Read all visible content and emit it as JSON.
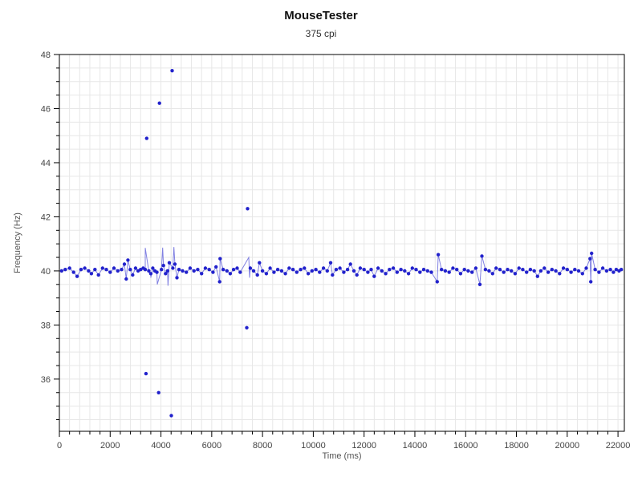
{
  "page": {
    "title": "MouseTester",
    "subtitle": "375 cpi"
  },
  "chart_data": {
    "type": "scatter",
    "title": "MouseTester",
    "subtitle": "375 cpi",
    "xlabel": "Time (ms)",
    "ylabel": "Frequency (Hz)",
    "xlim": [
      0,
      22250
    ],
    "ylim": [
      34.07,
      48
    ],
    "x_major_step": 2000,
    "x_minor_step": 400,
    "y_major_step": 2,
    "y_minor_step": 0.5,
    "grid": true,
    "legend_position": "none",
    "colors": {
      "marker": "#2222CC",
      "line": "#6B6BDD",
      "grid": "#E7E7E7",
      "axis": "#000000",
      "tick_label": "#444444",
      "axis_title": "#555555"
    },
    "series": [
      {
        "name": "Frequency",
        "points": [
          [
            90,
            40.0
          ],
          [
            230,
            40.05
          ],
          [
            400,
            40.1
          ],
          [
            560,
            39.95
          ],
          [
            700,
            39.8
          ],
          [
            850,
            40.05
          ],
          [
            1000,
            40.1
          ],
          [
            1150,
            40.0
          ],
          [
            1260,
            39.9
          ],
          [
            1400,
            40.05
          ],
          [
            1540,
            39.85
          ],
          [
            1700,
            40.1
          ],
          [
            1850,
            40.05
          ],
          [
            2000,
            39.95
          ],
          [
            2150,
            40.1
          ],
          [
            2300,
            40.0
          ],
          [
            2450,
            40.05
          ],
          [
            2560,
            40.25
          ],
          [
            2634,
            39.7
          ],
          [
            2700,
            40.4
          ],
          [
            2790,
            40.05
          ],
          [
            2884,
            39.85
          ],
          [
            3000,
            40.1
          ],
          [
            3100,
            40.0
          ],
          [
            3200,
            40.05
          ],
          [
            3300,
            40.1
          ],
          [
            3382,
            40.05
          ],
          [
            3410,
            36.2
          ],
          [
            3440,
            44.9
          ],
          [
            3520,
            40.0
          ],
          [
            3600,
            39.9
          ],
          [
            3680,
            40.1
          ],
          [
            3760,
            40.0
          ],
          [
            3840,
            39.95
          ],
          [
            3910,
            35.5
          ],
          [
            3940,
            46.2
          ],
          [
            4020,
            40.05
          ],
          [
            4100,
            40.2
          ],
          [
            4180,
            39.9
          ],
          [
            4260,
            40.0
          ],
          [
            4330,
            40.3
          ],
          [
            4410,
            34.65
          ],
          [
            4440,
            47.4
          ],
          [
            4470,
            40.1
          ],
          [
            4550,
            40.25
          ],
          [
            4630,
            39.75
          ],
          [
            4710,
            40.05
          ],
          [
            4850,
            40.0
          ],
          [
            5000,
            39.95
          ],
          [
            5150,
            40.1
          ],
          [
            5300,
            40.0
          ],
          [
            5450,
            40.05
          ],
          [
            5600,
            39.9
          ],
          [
            5750,
            40.1
          ],
          [
            5900,
            40.05
          ],
          [
            6050,
            39.95
          ],
          [
            6170,
            40.15
          ],
          [
            6312,
            39.6
          ],
          [
            6331,
            40.45
          ],
          [
            6450,
            40.05
          ],
          [
            6600,
            40.0
          ],
          [
            6730,
            39.9
          ],
          [
            6860,
            40.05
          ],
          [
            7000,
            40.1
          ],
          [
            7120,
            39.95
          ],
          [
            7380,
            37.9
          ],
          [
            7410,
            42.3
          ],
          [
            7520,
            40.1
          ],
          [
            7650,
            40.0
          ],
          [
            7797,
            39.85
          ],
          [
            7880,
            40.3
          ],
          [
            8000,
            40.0
          ],
          [
            8150,
            39.9
          ],
          [
            8300,
            40.1
          ],
          [
            8450,
            39.95
          ],
          [
            8600,
            40.05
          ],
          [
            8750,
            40.0
          ],
          [
            8900,
            39.9
          ],
          [
            9050,
            40.1
          ],
          [
            9200,
            40.05
          ],
          [
            9350,
            39.95
          ],
          [
            9500,
            40.05
          ],
          [
            9650,
            40.1
          ],
          [
            9800,
            39.9
          ],
          [
            9950,
            40.0
          ],
          [
            10100,
            40.05
          ],
          [
            10250,
            39.95
          ],
          [
            10400,
            40.1
          ],
          [
            10550,
            40.0
          ],
          [
            10683,
            40.3
          ],
          [
            10756,
            39.85
          ],
          [
            10900,
            40.05
          ],
          [
            11050,
            40.1
          ],
          [
            11200,
            39.95
          ],
          [
            11350,
            40.05
          ],
          [
            11464,
            40.25
          ],
          [
            11600,
            40.0
          ],
          [
            11717,
            39.85
          ],
          [
            11850,
            40.1
          ],
          [
            12000,
            40.05
          ],
          [
            12150,
            39.95
          ],
          [
            12280,
            40.05
          ],
          [
            12400,
            39.8
          ],
          [
            12550,
            40.1
          ],
          [
            12700,
            40.0
          ],
          [
            12850,
            39.9
          ],
          [
            13000,
            40.05
          ],
          [
            13150,
            40.1
          ],
          [
            13300,
            39.95
          ],
          [
            13450,
            40.05
          ],
          [
            13600,
            40.0
          ],
          [
            13750,
            39.9
          ],
          [
            13900,
            40.1
          ],
          [
            14050,
            40.05
          ],
          [
            14200,
            39.95
          ],
          [
            14350,
            40.05
          ],
          [
            14500,
            40.0
          ],
          [
            14650,
            39.95
          ],
          [
            14880,
            39.6
          ],
          [
            14920,
            40.6
          ],
          [
            15050,
            40.05
          ],
          [
            15200,
            40.0
          ],
          [
            15350,
            39.95
          ],
          [
            15500,
            40.1
          ],
          [
            15650,
            40.05
          ],
          [
            15800,
            39.9
          ],
          [
            15950,
            40.05
          ],
          [
            16100,
            40.0
          ],
          [
            16250,
            39.95
          ],
          [
            16400,
            40.1
          ],
          [
            16560,
            39.5
          ],
          [
            16640,
            40.55
          ],
          [
            16780,
            40.05
          ],
          [
            16920,
            40.0
          ],
          [
            17060,
            39.9
          ],
          [
            17200,
            40.1
          ],
          [
            17350,
            40.05
          ],
          [
            17500,
            39.95
          ],
          [
            17650,
            40.05
          ],
          [
            17800,
            40.0
          ],
          [
            17950,
            39.9
          ],
          [
            18100,
            40.1
          ],
          [
            18250,
            40.05
          ],
          [
            18400,
            39.95
          ],
          [
            18550,
            40.05
          ],
          [
            18700,
            40.0
          ],
          [
            18830,
            39.8
          ],
          [
            18960,
            40.0
          ],
          [
            19100,
            40.1
          ],
          [
            19250,
            39.95
          ],
          [
            19400,
            40.05
          ],
          [
            19550,
            40.0
          ],
          [
            19700,
            39.9
          ],
          [
            19850,
            40.1
          ],
          [
            20000,
            40.05
          ],
          [
            20150,
            39.95
          ],
          [
            20300,
            40.05
          ],
          [
            20450,
            40.0
          ],
          [
            20600,
            39.9
          ],
          [
            20750,
            40.1
          ],
          [
            20899,
            40.45
          ],
          [
            20930,
            39.6
          ],
          [
            20962,
            40.65
          ],
          [
            21100,
            40.05
          ],
          [
            21250,
            39.95
          ],
          [
            21400,
            40.1
          ],
          [
            21550,
            40.0
          ],
          [
            21700,
            40.05
          ],
          [
            21820,
            39.95
          ],
          [
            21930,
            40.05
          ],
          [
            22040,
            40.0
          ],
          [
            22130,
            40.05
          ]
        ]
      }
    ],
    "line_extra_points": [
      [
        3382,
        40.85
      ],
      [
        3600,
        39.75
      ],
      [
        3856,
        39.5
      ],
      [
        4068,
        40.86
      ],
      [
        4276,
        39.45
      ],
      [
        4510,
        40.88
      ],
      [
        7460,
        40.5
      ],
      [
        7490,
        39.75
      ]
    ],
    "line_band_min": 39.3,
    "line_band_max": 41.2
  }
}
